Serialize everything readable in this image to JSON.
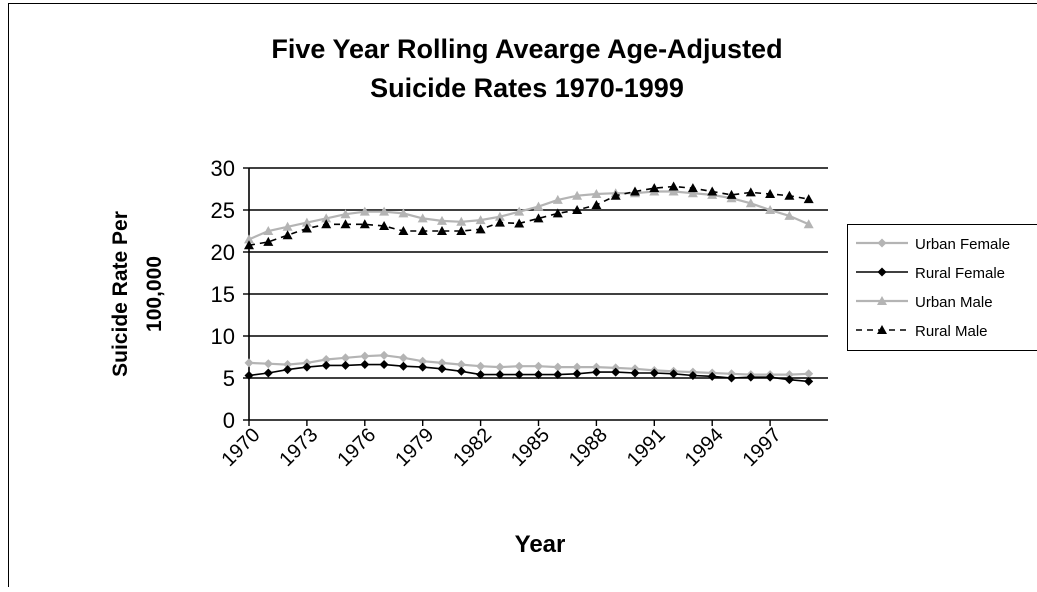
{
  "chart_data": {
    "type": "line",
    "title_lines": [
      "Five Year Rolling Avearge Age-Adjusted",
      "Suicide Rates 1970-1999"
    ],
    "xlabel": "Year",
    "ylabel_lines": [
      "Suicide Rate Per",
      "100,000"
    ],
    "ylim": [
      0,
      30
    ],
    "y_ticks": [
      "0",
      "5",
      "10",
      "15",
      "20",
      "25",
      "30"
    ],
    "x_tick_labels": [
      "1970",
      "1973",
      "1976",
      "1979",
      "1982",
      "1985",
      "1988",
      "1991",
      "1994",
      "1997"
    ],
    "x": [
      1970,
      1971,
      1972,
      1973,
      1974,
      1975,
      1976,
      1977,
      1978,
      1979,
      1980,
      1981,
      1982,
      1983,
      1984,
      1985,
      1986,
      1987,
      1988,
      1989,
      1990,
      1991,
      1992,
      1993,
      1994,
      1995,
      1996,
      1997,
      1998,
      1999
    ],
    "grid": "horizontal",
    "legend_position": "right",
    "series": [
      {
        "name": "Urban Female",
        "color": "#b4b4b4",
        "dash": false,
        "marker": "diamond",
        "values": [
          6.8,
          6.7,
          6.6,
          6.8,
          7.2,
          7.4,
          7.6,
          7.7,
          7.4,
          7.0,
          6.8,
          6.6,
          6.4,
          6.3,
          6.4,
          6.4,
          6.3,
          6.3,
          6.3,
          6.2,
          6.1,
          5.9,
          5.8,
          5.7,
          5.6,
          5.5,
          5.4,
          5.4,
          5.4,
          5.5
        ]
      },
      {
        "name": "Rural Female",
        "color": "#000000",
        "dash": false,
        "marker": "diamond",
        "values": [
          5.3,
          5.6,
          6.0,
          6.3,
          6.5,
          6.5,
          6.6,
          6.6,
          6.4,
          6.3,
          6.1,
          5.8,
          5.4,
          5.4,
          5.4,
          5.4,
          5.4,
          5.5,
          5.7,
          5.7,
          5.6,
          5.6,
          5.5,
          5.3,
          5.2,
          5.0,
          5.1,
          5.1,
          4.8,
          4.6
        ]
      },
      {
        "name": "Urban Male",
        "color": "#b4b4b4",
        "dash": false,
        "marker": "triangle",
        "values": [
          21.5,
          22.5,
          23.0,
          23.5,
          24.0,
          24.5,
          24.8,
          24.8,
          24.6,
          24.0,
          23.7,
          23.6,
          23.8,
          24.2,
          24.8,
          25.4,
          26.2,
          26.7,
          26.9,
          27.0,
          27.0,
          27.2,
          27.2,
          27.0,
          26.8,
          26.4,
          25.8,
          25.0,
          24.3,
          23.3
        ]
      },
      {
        "name": "Rural Male",
        "color": "#000000",
        "dash": true,
        "marker": "triangle",
        "values": [
          20.8,
          21.2,
          22.0,
          22.8,
          23.3,
          23.3,
          23.3,
          23.1,
          22.5,
          22.5,
          22.5,
          22.5,
          22.7,
          23.5,
          23.4,
          24.0,
          24.6,
          25.0,
          25.6,
          26.7,
          27.2,
          27.6,
          27.8,
          27.6,
          27.2,
          26.8,
          27.1,
          26.9,
          26.7,
          26.3
        ]
      }
    ]
  }
}
